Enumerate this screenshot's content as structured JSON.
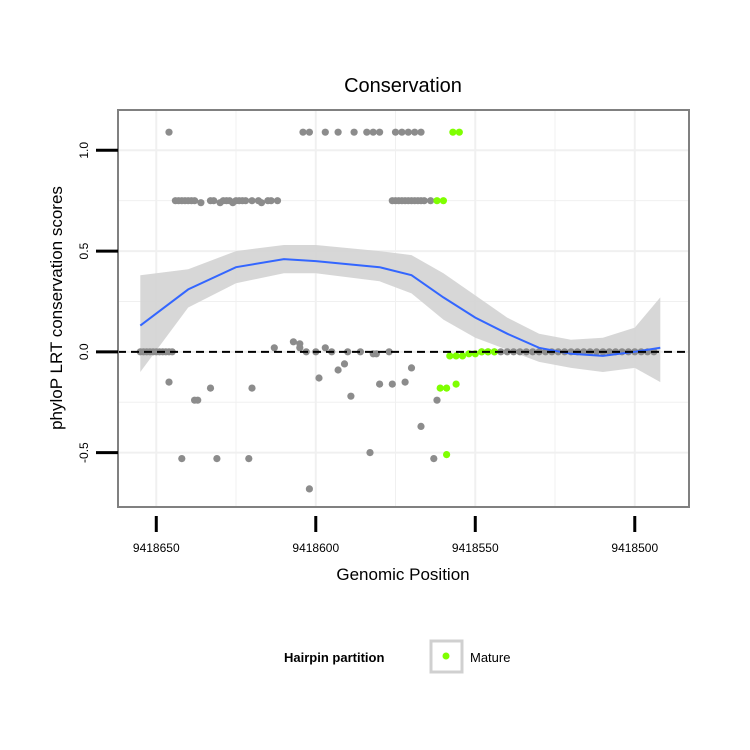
{
  "chart_data": {
    "type": "scatter",
    "title": "Conservation",
    "xlabel": "Genomic Position",
    "ylabel": "phyloP LRT conservation scores",
    "x_reversed": true,
    "xlim": [
      9418662,
      9418483
    ],
    "ylim": [
      -0.77,
      1.2
    ],
    "x_ticks": [
      9418650,
      9418600,
      9418550,
      9418500
    ],
    "x_tick_labels": [
      "9418650",
      "9418600",
      "9418550",
      "9418500"
    ],
    "y_ticks": [
      -0.5,
      0.0,
      0.5,
      1.0
    ],
    "y_tick_labels": [
      "-0.5",
      "0.0",
      "0.5",
      "1.0"
    ],
    "reference_line": {
      "y": 0.0,
      "style": "dashed",
      "color": "#000000"
    },
    "grid": true,
    "colors": {
      "other": "#8c8c8c",
      "mature": "#7fff00",
      "smooth": "#3366ff",
      "ribbon": "#d3d3d3",
      "panel_border": "#808080",
      "grid": "#f0f0f0"
    },
    "series": [
      {
        "name": "Other",
        "color": "#8c8c8c",
        "points": [
          [
            9418646,
            1.09
          ],
          [
            9418604,
            1.09
          ],
          [
            9418602,
            1.09
          ],
          [
            9418597,
            1.09
          ],
          [
            9418593,
            1.09
          ],
          [
            9418588,
            1.09
          ],
          [
            9418584,
            1.09
          ],
          [
            9418582,
            1.09
          ],
          [
            9418580,
            1.09
          ],
          [
            9418575,
            1.09
          ],
          [
            9418573,
            1.09
          ],
          [
            9418571,
            1.09
          ],
          [
            9418569,
            1.09
          ],
          [
            9418567,
            1.09
          ],
          [
            9418644,
            0.75
          ],
          [
            9418643,
            0.75
          ],
          [
            9418642,
            0.75
          ],
          [
            9418641,
            0.75
          ],
          [
            9418640,
            0.75
          ],
          [
            9418639,
            0.75
          ],
          [
            9418638,
            0.75
          ],
          [
            9418636,
            0.74
          ],
          [
            9418633,
            0.75
          ],
          [
            9418632,
            0.75
          ],
          [
            9418630,
            0.74
          ],
          [
            9418629,
            0.75
          ],
          [
            9418628,
            0.75
          ],
          [
            9418627,
            0.75
          ],
          [
            9418626,
            0.74
          ],
          [
            9418625,
            0.75
          ],
          [
            9418624,
            0.75
          ],
          [
            9418623,
            0.75
          ],
          [
            9418622,
            0.75
          ],
          [
            9418620,
            0.75
          ],
          [
            9418618,
            0.75
          ],
          [
            9418617,
            0.74
          ],
          [
            9418615,
            0.75
          ],
          [
            9418614,
            0.75
          ],
          [
            9418612,
            0.75
          ],
          [
            9418576,
            0.75
          ],
          [
            9418575,
            0.75
          ],
          [
            9418574,
            0.75
          ],
          [
            9418573,
            0.75
          ],
          [
            9418572,
            0.75
          ],
          [
            9418571,
            0.75
          ],
          [
            9418570,
            0.75
          ],
          [
            9418569,
            0.75
          ],
          [
            9418568,
            0.75
          ],
          [
            9418567,
            0.75
          ],
          [
            9418566,
            0.75
          ],
          [
            9418564,
            0.75
          ],
          [
            9418655,
            0.0
          ],
          [
            9418654,
            0.0
          ],
          [
            9418653,
            0.0
          ],
          [
            9418652,
            0.0
          ],
          [
            9418651,
            0.0
          ],
          [
            9418650,
            0.0
          ],
          [
            9418649,
            0.0
          ],
          [
            9418648,
            0.0
          ],
          [
            9418647,
            0.0
          ],
          [
            9418646,
            0.0
          ],
          [
            9418645,
            0.0
          ],
          [
            9418548,
            0.0
          ],
          [
            9418546,
            0.0
          ],
          [
            9418544,
            0.0
          ],
          [
            9418542,
            0.0
          ],
          [
            9418540,
            0.0
          ],
          [
            9418538,
            0.0
          ],
          [
            9418536,
            0.0
          ],
          [
            9418534,
            0.0
          ],
          [
            9418532,
            0.0
          ],
          [
            9418530,
            0.0
          ],
          [
            9418528,
            0.0
          ],
          [
            9418526,
            0.0
          ],
          [
            9418524,
            0.0
          ],
          [
            9418522,
            0.0
          ],
          [
            9418520,
            0.0
          ],
          [
            9418518,
            0.0
          ],
          [
            9418516,
            0.0
          ],
          [
            9418514,
            0.0
          ],
          [
            9418512,
            0.0
          ],
          [
            9418510,
            0.0
          ],
          [
            9418508,
            0.0
          ],
          [
            9418506,
            0.0
          ],
          [
            9418504,
            0.0
          ],
          [
            9418502,
            0.0
          ],
          [
            9418500,
            0.0
          ],
          [
            9418498,
            0.0
          ],
          [
            9418496,
            0.0
          ],
          [
            9418494,
            0.0
          ],
          [
            9418613,
            0.02
          ],
          [
            9418605,
            0.02
          ],
          [
            9418603,
            0.0
          ],
          [
            9418600,
            0.0
          ],
          [
            9418597,
            0.02
          ],
          [
            9418595,
            -0.0
          ],
          [
            9418590,
            -0.0
          ],
          [
            9418586,
            -0.0
          ],
          [
            9418582,
            -0.01
          ],
          [
            9418581,
            -0.01
          ],
          [
            9418577,
            0.0
          ],
          [
            9418607,
            0.05
          ],
          [
            9418605,
            0.04
          ],
          [
            9418591,
            -0.06
          ],
          [
            9418646,
            -0.15
          ],
          [
            9418642,
            -0.53
          ],
          [
            9418638,
            -0.24
          ],
          [
            9418637,
            -0.24
          ],
          [
            9418633,
            -0.18
          ],
          [
            9418631,
            -0.53
          ],
          [
            9418621,
            -0.53
          ],
          [
            9418620,
            -0.18
          ],
          [
            9418599,
            -0.13
          ],
          [
            9418593,
            -0.09
          ],
          [
            9418589,
            -0.22
          ],
          [
            9418583,
            -0.5
          ],
          [
            9418580,
            -0.16
          ],
          [
            9418576,
            -0.16
          ],
          [
            9418572,
            -0.15
          ],
          [
            9418570,
            -0.08
          ],
          [
            9418567,
            -0.37
          ],
          [
            9418563,
            -0.53
          ],
          [
            9418562,
            -0.24
          ],
          [
            9418602,
            -0.68
          ]
        ]
      },
      {
        "name": "Mature",
        "color": "#7fff00",
        "points": [
          [
            9418557,
            1.09
          ],
          [
            9418555,
            1.09
          ],
          [
            9418562,
            0.75
          ],
          [
            9418560,
            0.75
          ],
          [
            9418561,
            -0.18
          ],
          [
            9418559,
            -0.18
          ],
          [
            9418556,
            -0.16
          ],
          [
            9418559,
            -0.51
          ],
          [
            9418558,
            -0.02
          ],
          [
            9418556,
            -0.02
          ],
          [
            9418554,
            -0.02
          ],
          [
            9418552,
            -0.01
          ],
          [
            9418550,
            -0.01
          ],
          [
            9418548,
            0.0
          ],
          [
            9418546,
            0.0
          ],
          [
            9418544,
            0.0
          ]
        ]
      }
    ],
    "smooth_line": {
      "x": [
        9418655,
        9418640,
        9418625,
        9418610,
        9418600,
        9418580,
        9418570,
        9418560,
        9418550,
        9418540,
        9418530,
        9418520,
        9418510,
        9418500,
        9418492
      ],
      "y": [
        0.13,
        0.31,
        0.42,
        0.46,
        0.45,
        0.42,
        0.38,
        0.27,
        0.17,
        0.09,
        0.02,
        -0.01,
        -0.02,
        0.0,
        0.02
      ],
      "lower": [
        -0.1,
        0.22,
        0.34,
        0.39,
        0.39,
        0.35,
        0.29,
        0.16,
        0.07,
        0.01,
        -0.05,
        -0.08,
        -0.1,
        -0.08,
        -0.15
      ],
      "upper": [
        0.38,
        0.41,
        0.5,
        0.53,
        0.53,
        0.5,
        0.48,
        0.39,
        0.28,
        0.17,
        0.09,
        0.06,
        0.07,
        0.12,
        0.27
      ]
    }
  },
  "legend": {
    "title": "Hairpin partition",
    "items": [
      {
        "label": "Mature",
        "color": "#7fff00"
      }
    ]
  }
}
